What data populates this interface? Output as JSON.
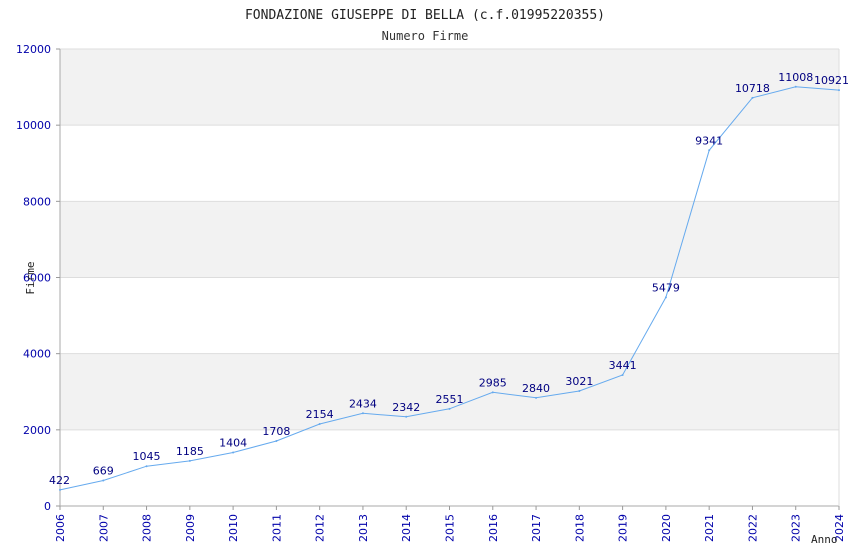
{
  "chart_data": {
    "type": "line",
    "title": "FONDAZIONE GIUSEPPE DI BELLA (c.f.01995220355)",
    "subtitle": "Numero Firme",
    "xlabel": "Anno",
    "ylabel": "Firme",
    "x": [
      "2006",
      "2007",
      "2008",
      "2009",
      "2010",
      "2011",
      "2012",
      "2013",
      "2014",
      "2015",
      "2016",
      "2017",
      "2018",
      "2019",
      "2020",
      "2021",
      "2022",
      "2023",
      "2024"
    ],
    "series": [
      {
        "values": [
          422,
          669,
          1045,
          1185,
          1404,
          1708,
          2154,
          2434,
          2342,
          2551,
          2985,
          2840,
          3021,
          3441,
          5479,
          9341,
          10718,
          11008,
          10921
        ]
      }
    ],
    "data_labels": [
      "422",
      "669",
      "1045",
      "1185",
      "1404",
      "1708",
      "2154",
      "2434",
      "2342",
      "2551",
      "2985",
      "2840",
      "3021",
      "3441",
      "5479",
      "9341",
      "10718",
      "11008",
      "10921"
    ],
    "ylim": [
      0,
      12000
    ],
    "yticks": [
      "0",
      "2000",
      "4000",
      "6000",
      "8000",
      "10000",
      "12000"
    ],
    "grid": true,
    "colors": {
      "line": "#66aaee",
      "band": "#f2f2f2",
      "tick": "#0000aa",
      "label": "#000080"
    }
  }
}
